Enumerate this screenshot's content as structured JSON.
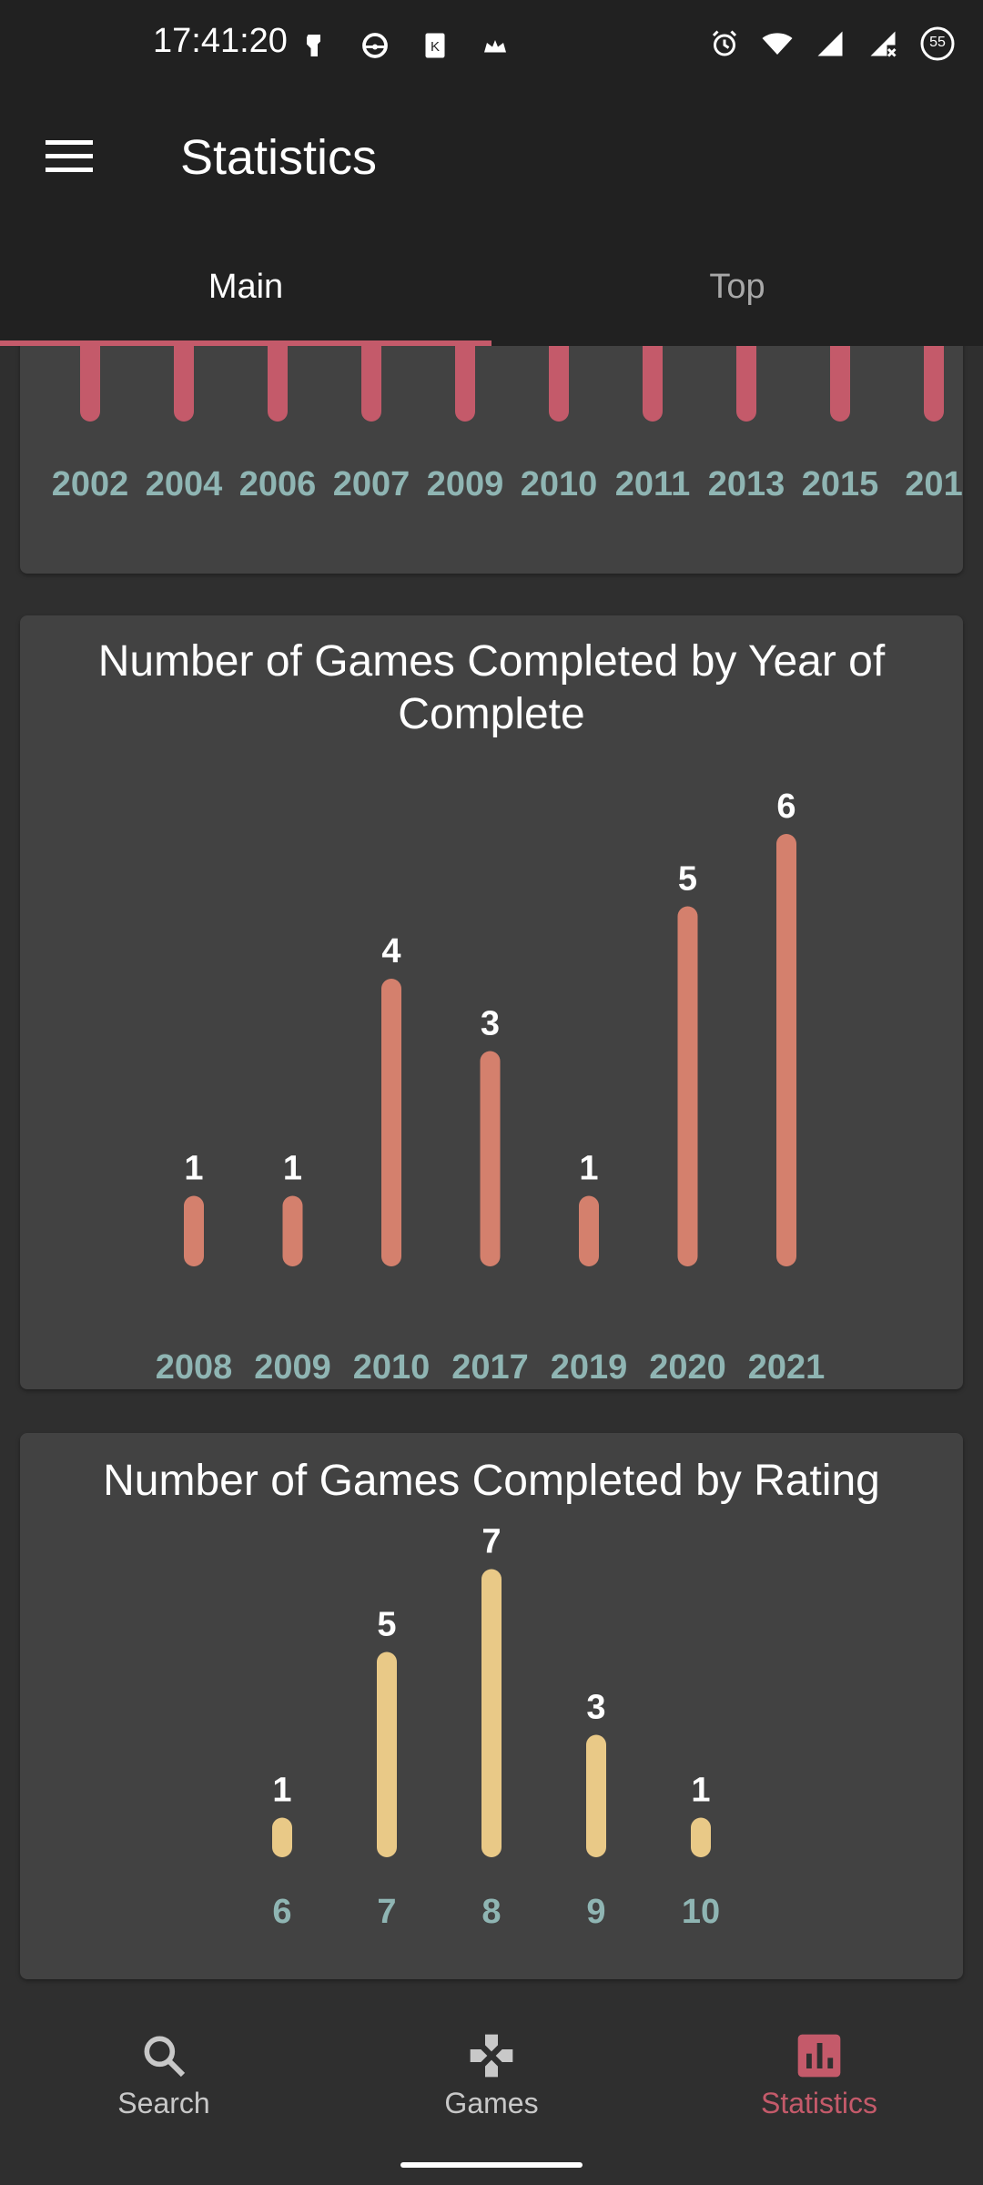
{
  "status": {
    "time": "17:41:20",
    "battery": "55"
  },
  "header": {
    "title": "Statistics"
  },
  "tabs": [
    {
      "label": "Main",
      "active": true
    },
    {
      "label": "Top",
      "active": false
    }
  ],
  "colors": {
    "accent": "#c45a6a",
    "chart1": "#c45a6a",
    "chart2": "#d4806d",
    "chart3": "#e9c987",
    "axis_label": "#8fb5b3"
  },
  "chart_data": [
    {
      "type": "bar",
      "title": "",
      "categories": [
        "2002",
        "2004",
        "2006",
        "2007",
        "2009",
        "2010",
        "2011",
        "2013",
        "2015",
        "201"
      ],
      "values": [
        null,
        null,
        null,
        null,
        null,
        null,
        null,
        null,
        null,
        null
      ],
      "note_visible": "partially scrolled out of view"
    },
    {
      "type": "bar",
      "title": "Number of Games Completed by Year of Complete",
      "categories": [
        "2008",
        "2009",
        "2010",
        "2017",
        "2019",
        "2020",
        "2021"
      ],
      "values": [
        1,
        1,
        4,
        3,
        1,
        5,
        6
      ]
    },
    {
      "type": "bar",
      "title": "Number of Games Completed by Rating",
      "categories": [
        "6",
        "7",
        "8",
        "9",
        "10"
      ],
      "values": [
        1,
        5,
        7,
        3,
        1
      ]
    }
  ],
  "nav": {
    "items": [
      {
        "label": "Search",
        "icon": "search-icon",
        "active": false
      },
      {
        "label": "Games",
        "icon": "gamepad-icon",
        "active": false
      },
      {
        "label": "Statistics",
        "icon": "bar-chart-icon",
        "active": true
      }
    ]
  }
}
